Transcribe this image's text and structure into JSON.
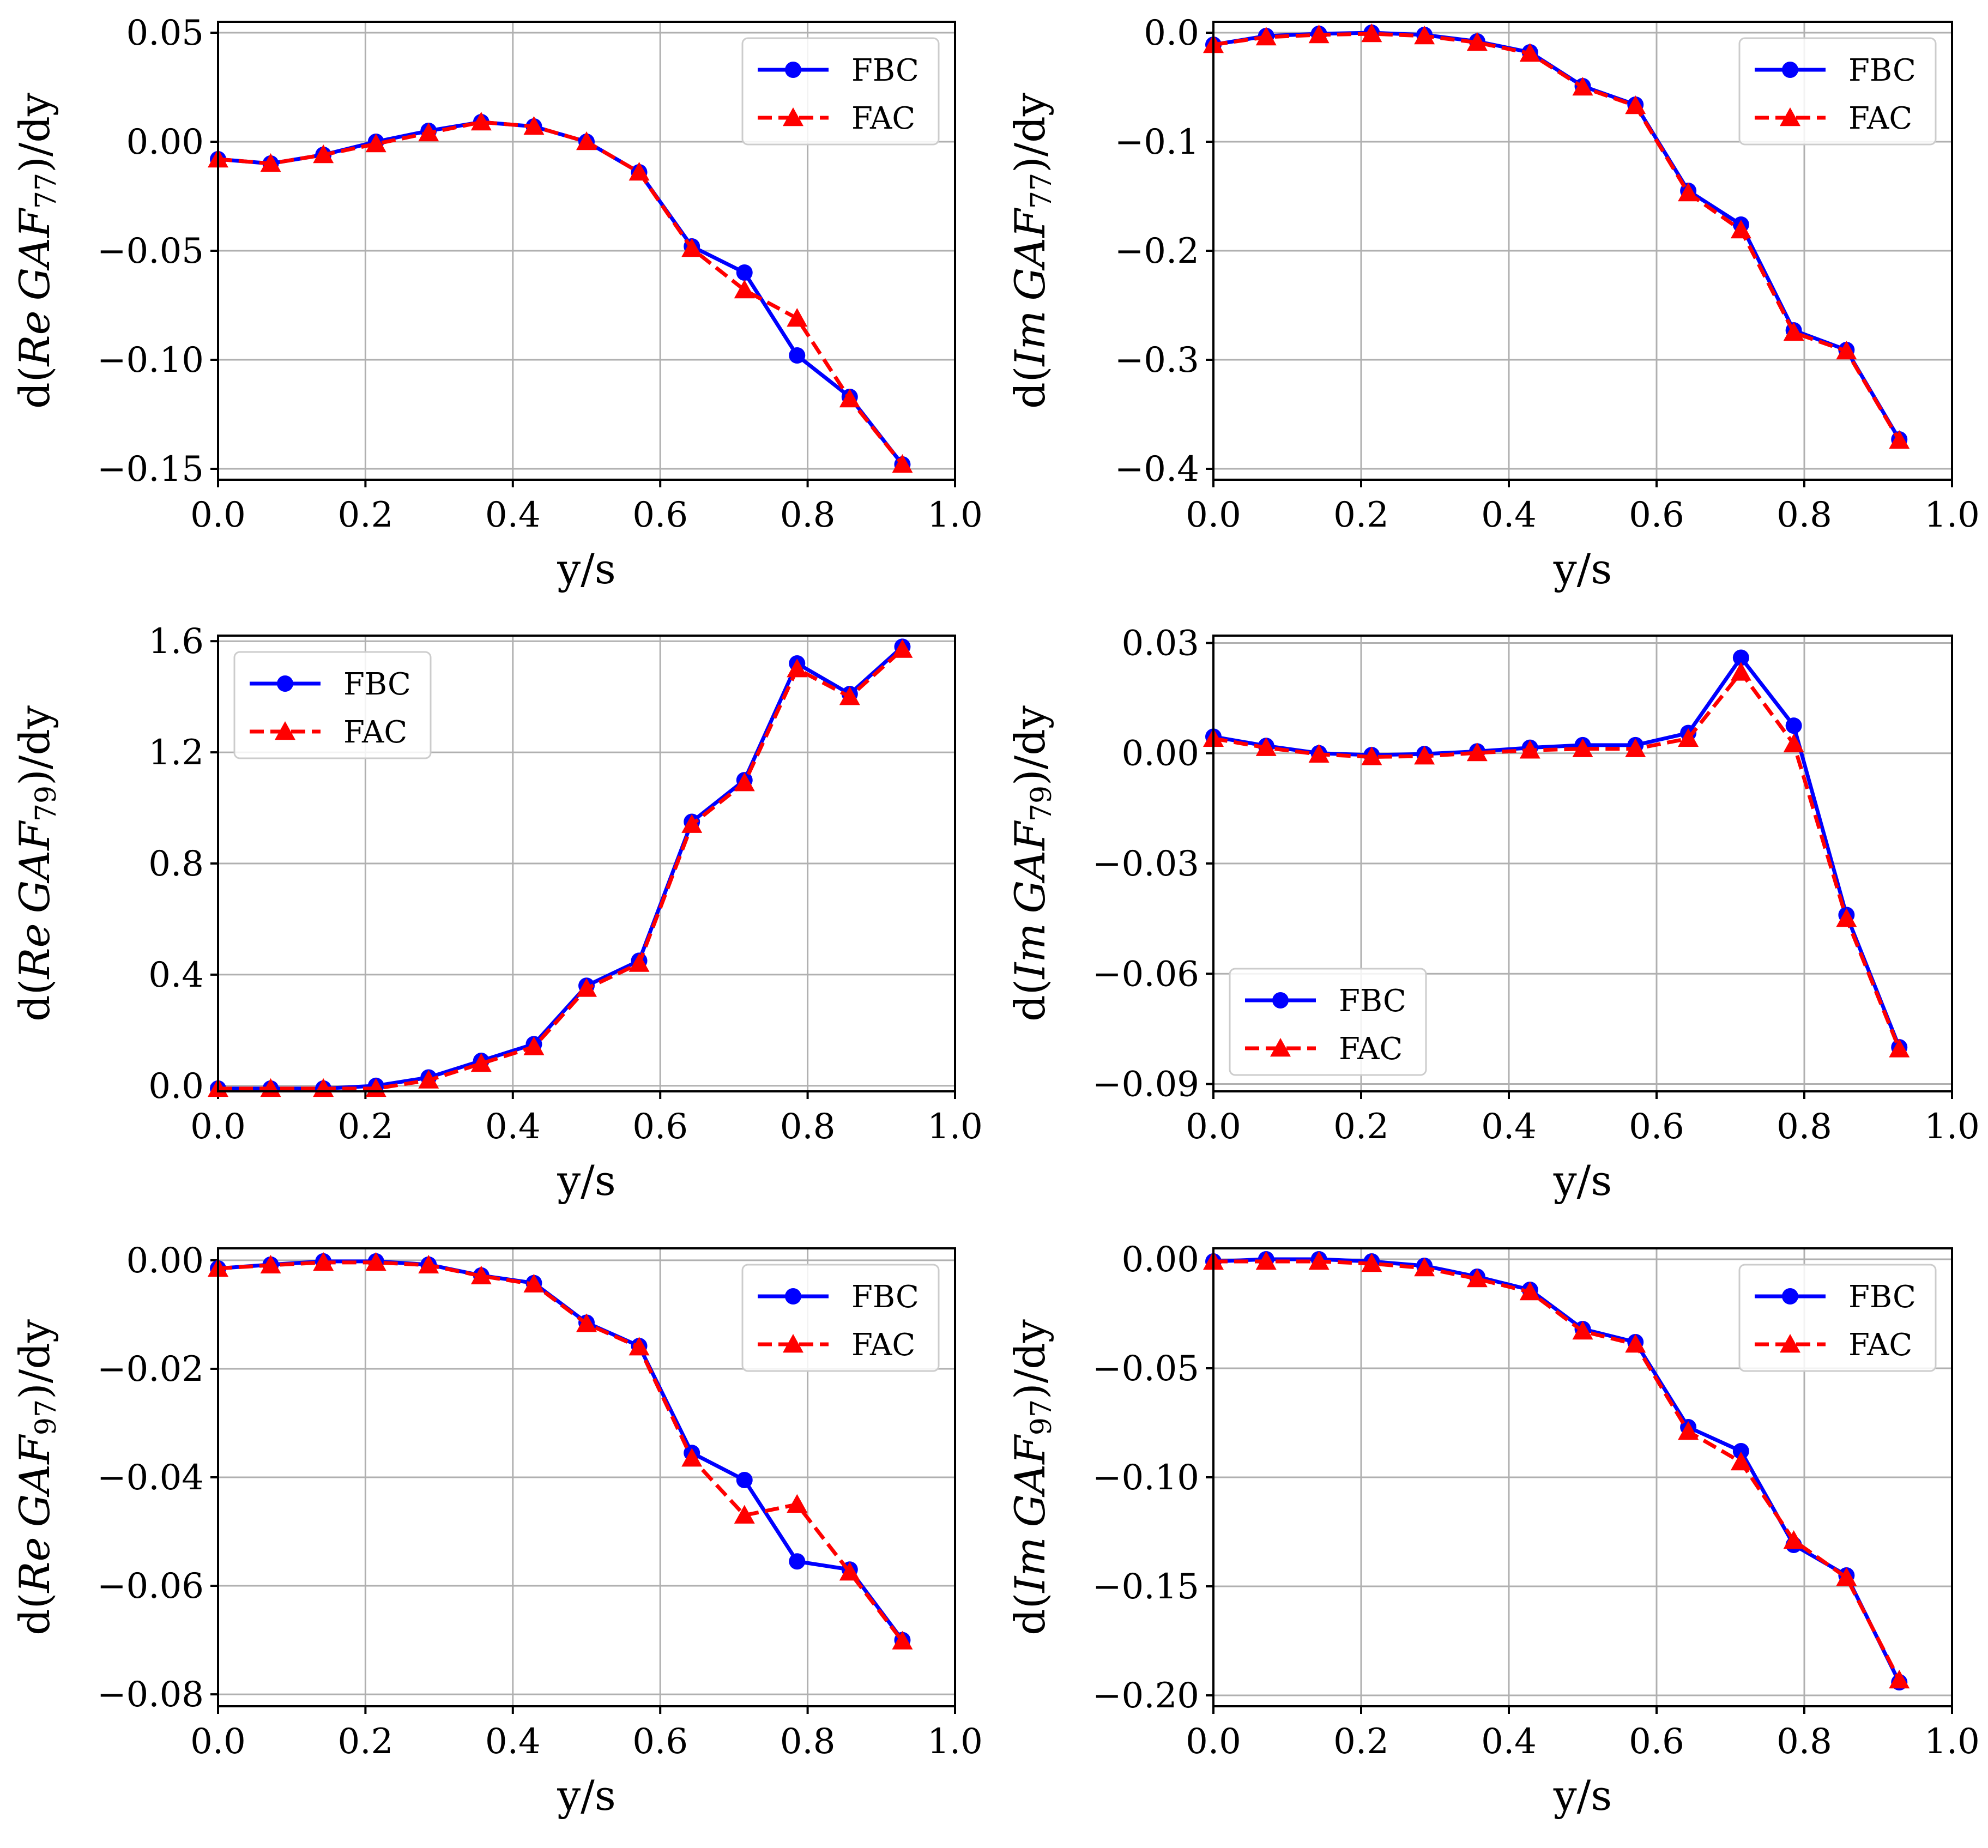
{
  "chart_data": [
    {
      "type": "line",
      "xlabel": "y/s",
      "ylabel_prefix": "d(",
      "ylabel_part": "Re",
      "ylabel_gaf": "GAF",
      "ylabel_subscript": "77",
      "ylabel_suffix": ")/dy",
      "xlim": [
        0.0,
        1.0
      ],
      "ylim": [
        -0.155,
        0.055
      ],
      "xticks": [
        0.0,
        0.2,
        0.4,
        0.6,
        0.8,
        1.0
      ],
      "xtick_labels": [
        "0.0",
        "0.2",
        "0.4",
        "0.6",
        "0.8",
        "1.0"
      ],
      "yticks": [
        0.05,
        0.0,
        -0.05,
        -0.1,
        -0.15
      ],
      "ytick_labels": [
        "0.05",
        "0.00",
        "−0.05",
        "−0.10",
        "−0.15"
      ],
      "legend_loc": "top-right",
      "x": [
        0.0,
        0.0714,
        0.1429,
        0.2143,
        0.2857,
        0.3571,
        0.4286,
        0.5,
        0.5714,
        0.6429,
        0.7143,
        0.7857,
        0.8571,
        0.9286
      ],
      "series": [
        {
          "name": "FBC",
          "color": "#0000ff",
          "marker": "circle",
          "linestyle": "solid",
          "values": [
            -0.008,
            -0.01,
            -0.006,
            0.0,
            0.005,
            0.009,
            0.007,
            0.0,
            -0.014,
            -0.048,
            -0.06,
            -0.098,
            -0.117,
            -0.148
          ]
        },
        {
          "name": "FAC",
          "color": "#ff0000",
          "marker": "triangle",
          "linestyle": "dashed",
          "values": [
            -0.008,
            -0.01,
            -0.006,
            -0.001,
            0.004,
            0.009,
            0.007,
            0.0,
            -0.014,
            -0.049,
            -0.068,
            -0.081,
            -0.118,
            -0.148
          ]
        }
      ]
    },
    {
      "type": "line",
      "xlabel": "y/s",
      "ylabel_prefix": "d(",
      "ylabel_part": "Im",
      "ylabel_gaf": "GAF",
      "ylabel_subscript": "77",
      "ylabel_suffix": ")/dy",
      "xlim": [
        0.0,
        1.0
      ],
      "ylim": [
        -0.41,
        0.01
      ],
      "xticks": [
        0.0,
        0.2,
        0.4,
        0.6,
        0.8,
        1.0
      ],
      "xtick_labels": [
        "0.0",
        "0.2",
        "0.4",
        "0.6",
        "0.8",
        "1.0"
      ],
      "yticks": [
        0.0,
        -0.1,
        -0.2,
        -0.3,
        -0.4
      ],
      "ytick_labels": [
        "0.0",
        "−0.1",
        "−0.2",
        "−0.3",
        "−0.4"
      ],
      "legend_loc": "top-right",
      "x": [
        0.0,
        0.0714,
        0.1429,
        0.2143,
        0.2857,
        0.3571,
        0.4286,
        0.5,
        0.5714,
        0.6429,
        0.7143,
        0.7857,
        0.8571,
        0.9286
      ],
      "series": [
        {
          "name": "FBC",
          "color": "#0000ff",
          "marker": "circle",
          "linestyle": "solid",
          "values": [
            -0.011,
            -0.003,
            -0.001,
            0.0,
            -0.002,
            -0.008,
            -0.018,
            -0.049,
            -0.066,
            -0.145,
            -0.176,
            -0.273,
            -0.291,
            -0.373
          ]
        },
        {
          "name": "FAC",
          "color": "#ff0000",
          "marker": "triangle",
          "linestyle": "dashed",
          "values": [
            -0.011,
            -0.004,
            -0.002,
            -0.001,
            -0.003,
            -0.009,
            -0.019,
            -0.05,
            -0.067,
            -0.147,
            -0.181,
            -0.275,
            -0.292,
            -0.374
          ]
        }
      ]
    },
    {
      "type": "line",
      "xlabel": "y/s",
      "ylabel_prefix": "d(",
      "ylabel_part": "Re",
      "ylabel_gaf": "GAF",
      "ylabel_subscript": "79",
      "ylabel_suffix": ")/dy",
      "xlim": [
        0.0,
        1.0
      ],
      "ylim": [
        -0.02,
        1.62
      ],
      "xticks": [
        0.0,
        0.2,
        0.4,
        0.6,
        0.8,
        1.0
      ],
      "xtick_labels": [
        "0.0",
        "0.2",
        "0.4",
        "0.6",
        "0.8",
        "1.0"
      ],
      "yticks": [
        1.6,
        1.2,
        0.8,
        0.4,
        0.0
      ],
      "ytick_labels": [
        "1.6",
        "1.2",
        "0.8",
        "0.4",
        "0.0"
      ],
      "legend_loc": "top-left",
      "x": [
        0.0,
        0.0714,
        0.1429,
        0.2143,
        0.2857,
        0.3571,
        0.4286,
        0.5,
        0.5714,
        0.6429,
        0.7143,
        0.7857,
        0.8571,
        0.9286
      ],
      "series": [
        {
          "name": "FBC",
          "color": "#0000ff",
          "marker": "circle",
          "linestyle": "solid",
          "values": [
            -0.01,
            -0.01,
            -0.01,
            0.0,
            0.03,
            0.09,
            0.15,
            0.36,
            0.45,
            0.95,
            1.1,
            1.52,
            1.41,
            1.58
          ]
        },
        {
          "name": "FAC",
          "color": "#ff0000",
          "marker": "triangle",
          "linestyle": "dashed",
          "values": [
            -0.01,
            -0.01,
            -0.01,
            -0.01,
            0.02,
            0.08,
            0.14,
            0.35,
            0.44,
            0.94,
            1.09,
            1.5,
            1.4,
            1.57
          ]
        }
      ]
    },
    {
      "type": "line",
      "xlabel": "y/s",
      "ylabel_prefix": "d(",
      "ylabel_part": "Im",
      "ylabel_gaf": "GAF",
      "ylabel_subscript": "79",
      "ylabel_suffix": ")/dy",
      "xlim": [
        0.0,
        1.0
      ],
      "ylim": [
        -0.092,
        0.032
      ],
      "xticks": [
        0.0,
        0.2,
        0.4,
        0.6,
        0.8,
        1.0
      ],
      "xtick_labels": [
        "0.0",
        "0.2",
        "0.4",
        "0.6",
        "0.8",
        "1.0"
      ],
      "yticks": [
        0.03,
        0.0,
        -0.03,
        -0.06,
        -0.09
      ],
      "ytick_labels": [
        "0.03",
        "0.00",
        "−0.03",
        "−0.06",
        "−0.09"
      ],
      "legend_loc": "bottom-left",
      "x": [
        0.0,
        0.0714,
        0.1429,
        0.2143,
        0.2857,
        0.3571,
        0.4286,
        0.5,
        0.5714,
        0.6429,
        0.7143,
        0.7857,
        0.8571,
        0.9286
      ],
      "series": [
        {
          "name": "FBC",
          "color": "#0000ff",
          "marker": "circle",
          "linestyle": "solid",
          "values": [
            0.0045,
            0.002,
            0.0,
            -0.0005,
            -0.0002,
            0.0005,
            0.0015,
            0.0022,
            0.0022,
            0.0055,
            0.026,
            0.0075,
            -0.044,
            -0.08
          ]
        },
        {
          "name": "FAC",
          "color": "#ff0000",
          "marker": "triangle",
          "linestyle": "dashed",
          "values": [
            0.004,
            0.0015,
            -0.0003,
            -0.001,
            -0.0008,
            0.0001,
            0.0008,
            0.0012,
            0.0012,
            0.004,
            0.022,
            0.0025,
            -0.045,
            -0.0805
          ]
        }
      ]
    },
    {
      "type": "line",
      "xlabel": "y/s",
      "ylabel_prefix": "d(",
      "ylabel_part": "Re",
      "ylabel_gaf": "GAF",
      "ylabel_subscript": "97",
      "ylabel_suffix": ")/dy",
      "xlim": [
        0.0,
        1.0
      ],
      "ylim": [
        -0.0822,
        0.0022
      ],
      "xticks": [
        0.0,
        0.2,
        0.4,
        0.6,
        0.8,
        1.0
      ],
      "xtick_labels": [
        "0.0",
        "0.2",
        "0.4",
        "0.6",
        "0.8",
        "1.0"
      ],
      "yticks": [
        0.0,
        -0.02,
        -0.04,
        -0.06,
        -0.08
      ],
      "ytick_labels": [
        "0.00",
        "−0.02",
        "−0.04",
        "−0.06",
        "−0.08"
      ],
      "legend_loc": "top-right",
      "x": [
        0.0,
        0.0714,
        0.1429,
        0.2143,
        0.2857,
        0.3571,
        0.4286,
        0.5,
        0.5714,
        0.6429,
        0.7143,
        0.7857,
        0.8571,
        0.9286
      ],
      "series": [
        {
          "name": "FBC",
          "color": "#0000ff",
          "marker": "circle",
          "linestyle": "solid",
          "values": [
            -0.0015,
            -0.0008,
            -0.0002,
            -0.0002,
            -0.0008,
            -0.0028,
            -0.0042,
            -0.0115,
            -0.0158,
            -0.0355,
            -0.0405,
            -0.0555,
            -0.057,
            -0.07
          ]
        },
        {
          "name": "FAC",
          "color": "#ff0000",
          "marker": "triangle",
          "linestyle": "dashed",
          "values": [
            -0.0015,
            -0.0009,
            -0.0004,
            -0.0004,
            -0.0009,
            -0.0029,
            -0.0044,
            -0.0117,
            -0.016,
            -0.0365,
            -0.047,
            -0.045,
            -0.0575,
            -0.0702
          ]
        }
      ]
    },
    {
      "type": "line",
      "xlabel": "y/s",
      "ylabel_prefix": "d(",
      "ylabel_part": "Im",
      "ylabel_gaf": "GAF",
      "ylabel_subscript": "97",
      "ylabel_suffix": ")/dy",
      "xlim": [
        0.0,
        1.0
      ],
      "ylim": [
        -0.205,
        0.005
      ],
      "xticks": [
        0.0,
        0.2,
        0.4,
        0.6,
        0.8,
        1.0
      ],
      "xtick_labels": [
        "0.0",
        "0.2",
        "0.4",
        "0.6",
        "0.8",
        "1.0"
      ],
      "yticks": [
        0.0,
        -0.05,
        -0.1,
        -0.15,
        -0.2
      ],
      "ytick_labels": [
        "0.00",
        "−0.05",
        "−0.10",
        "−0.15",
        "−0.20"
      ],
      "legend_loc": "top-right",
      "x": [
        0.0,
        0.0714,
        0.1429,
        0.2143,
        0.2857,
        0.3571,
        0.4286,
        0.5,
        0.5714,
        0.6429,
        0.7143,
        0.7857,
        0.8571,
        0.9286
      ],
      "series": [
        {
          "name": "FBC",
          "color": "#0000ff",
          "marker": "circle",
          "linestyle": "solid",
          "values": [
            -0.001,
            0.0,
            0.0,
            -0.001,
            -0.003,
            -0.008,
            -0.014,
            -0.032,
            -0.038,
            -0.077,
            -0.088,
            -0.131,
            -0.145,
            -0.194
          ]
        },
        {
          "name": "FAC",
          "color": "#ff0000",
          "marker": "triangle",
          "linestyle": "dashed",
          "values": [
            -0.001,
            -0.001,
            -0.001,
            -0.002,
            -0.004,
            -0.009,
            -0.015,
            -0.033,
            -0.039,
            -0.079,
            -0.093,
            -0.129,
            -0.146,
            -0.193
          ]
        }
      ]
    }
  ]
}
